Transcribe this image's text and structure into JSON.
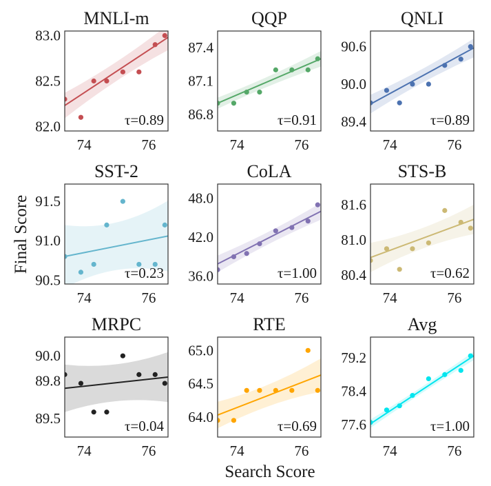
{
  "chart_data": {
    "type": "scatter",
    "xlabel": "Search Score",
    "ylabel": "Final Score",
    "xticks": [
      74,
      76
    ],
    "xlim": [
      73.4,
      76.6
    ],
    "subplots": [
      {
        "title": "MNLI-m",
        "tau": "τ=0.89",
        "color": "#c44e52",
        "ylim": [
          81.95,
          83.05
        ],
        "yticks": [
          82.0,
          82.5,
          83.0
        ],
        "ytick_labels": [
          "82.0",
          "82.5",
          "83.0"
        ],
        "points": [
          [
            73.4,
            82.3
          ],
          [
            73.9,
            82.1
          ],
          [
            74.3,
            82.5
          ],
          [
            74.7,
            82.5
          ],
          [
            75.2,
            82.6
          ],
          [
            75.7,
            82.6
          ],
          [
            76.2,
            82.9
          ],
          [
            76.5,
            83.0
          ]
        ],
        "fit": [
          [
            73.4,
            82.23
          ],
          [
            76.6,
            82.98
          ]
        ],
        "band": [
          0.14,
          0.07,
          0.14
        ]
      },
      {
        "title": "QQP",
        "tau": "τ=0.91",
        "color": "#55a868",
        "ylim": [
          86.65,
          87.55
        ],
        "yticks": [
          86.8,
          87.1,
          87.4
        ],
        "ytick_labels": [
          "86.8",
          "87.1",
          "87.4"
        ],
        "points": [
          [
            73.4,
            86.9
          ],
          [
            73.9,
            86.9
          ],
          [
            74.3,
            87.0
          ],
          [
            74.7,
            87.0
          ],
          [
            75.2,
            87.2
          ],
          [
            75.7,
            87.2
          ],
          [
            76.2,
            87.2
          ],
          [
            76.5,
            87.3
          ]
        ],
        "fit": [
          [
            73.4,
            86.9
          ],
          [
            76.6,
            87.3
          ]
        ],
        "band": [
          0.05,
          0.03,
          0.07
        ]
      },
      {
        "title": "QNLI",
        "tau": "τ=0.89",
        "color": "#4c72b0",
        "ylim": [
          89.25,
          90.85
        ],
        "yticks": [
          89.4,
          90.0,
          90.6
        ],
        "ytick_labels": [
          "89.4",
          "90.0",
          "90.6"
        ],
        "points": [
          [
            73.4,
            89.7
          ],
          [
            73.9,
            89.9
          ],
          [
            74.3,
            89.7
          ],
          [
            74.7,
            90.0
          ],
          [
            75.2,
            90.0
          ],
          [
            75.7,
            90.3
          ],
          [
            76.2,
            90.4
          ],
          [
            76.5,
            90.6
          ]
        ],
        "fit": [
          [
            73.4,
            89.68
          ],
          [
            76.6,
            90.58
          ]
        ],
        "band": [
          0.15,
          0.07,
          0.15
        ]
      },
      {
        "title": "SST-2",
        "tau": "τ=0.23",
        "color": "#64b5cd",
        "ylim": [
          90.45,
          91.72
        ],
        "yticks": [
          90.5,
          91.0,
          91.5
        ],
        "ytick_labels": [
          "90.5",
          "91.0",
          "91.5"
        ],
        "points": [
          [
            73.4,
            90.8
          ],
          [
            73.9,
            90.6
          ],
          [
            74.3,
            90.7
          ],
          [
            74.7,
            91.2
          ],
          [
            75.2,
            91.5
          ],
          [
            75.7,
            90.7
          ],
          [
            76.2,
            90.7
          ],
          [
            76.5,
            91.2
          ]
        ],
        "fit": [
          [
            73.4,
            90.8
          ],
          [
            76.6,
            91.06
          ]
        ],
        "band": [
          0.4,
          0.18,
          0.45
        ]
      },
      {
        "title": "CoLA",
        "tau": "τ=1.00",
        "color": "#8172b2",
        "ylim": [
          34.8,
          50.2
        ],
        "yticks": [
          36.0,
          42.0,
          48.0
        ],
        "ytick_labels": [
          "36.0",
          "42.0",
          "48.0"
        ],
        "points": [
          [
            73.4,
            37.0
          ],
          [
            73.9,
            39.0
          ],
          [
            74.3,
            39.5
          ],
          [
            74.7,
            41.0
          ],
          [
            75.2,
            43.0
          ],
          [
            75.7,
            43.5
          ],
          [
            76.2,
            44.5
          ],
          [
            76.5,
            47.0
          ]
        ],
        "fit": [
          [
            73.4,
            37.9
          ],
          [
            76.6,
            46.0
          ]
        ],
        "band": [
          1.3,
          0.6,
          1.3
        ]
      },
      {
        "title": "STS-B",
        "tau": "τ=0.62",
        "color": "#ccb974",
        "ylim": [
          80.25,
          81.95
        ],
        "yticks": [
          80.4,
          81.0,
          81.6
        ],
        "ytick_labels": [
          "80.4",
          "81.0",
          "81.6"
        ],
        "points": [
          [
            73.4,
            80.65
          ],
          [
            73.9,
            80.85
          ],
          [
            74.3,
            80.5
          ],
          [
            74.7,
            80.85
          ],
          [
            75.2,
            80.95
          ],
          [
            75.7,
            81.5
          ],
          [
            76.2,
            81.3
          ],
          [
            76.5,
            81.2
          ]
        ],
        "fit": [
          [
            73.4,
            80.7
          ],
          [
            76.6,
            81.35
          ]
        ],
        "band": [
          0.25,
          0.1,
          0.25
        ]
      },
      {
        "title": "MRPC",
        "tau": "τ=0.04",
        "color": "#222222",
        "ylim": [
          89.35,
          90.15
        ],
        "yticks": [
          89.5,
          89.8,
          90.0
        ],
        "ytick_labels": [
          "89.5",
          "89.8",
          "90.0"
        ],
        "points": [
          [
            73.4,
            89.85
          ],
          [
            73.9,
            89.78
          ],
          [
            74.3,
            89.55
          ],
          [
            74.7,
            89.55
          ],
          [
            75.2,
            90.0
          ],
          [
            75.7,
            89.85
          ],
          [
            76.2,
            89.85
          ],
          [
            76.5,
            89.78
          ]
        ],
        "fit": [
          [
            73.4,
            89.74
          ],
          [
            76.6,
            89.83
          ]
        ],
        "band": [
          0.19,
          0.1,
          0.2
        ]
      },
      {
        "title": "RTE",
        "tau": "τ=0.69",
        "color": "#ffa500",
        "ylim": [
          63.7,
          65.2
        ],
        "yticks": [
          64.0,
          64.5,
          65.0
        ],
        "ytick_labels": [
          "64.0",
          "64.5",
          "65.0"
        ],
        "points": [
          [
            73.4,
            63.95
          ],
          [
            73.9,
            63.95
          ],
          [
            74.3,
            64.4
          ],
          [
            74.7,
            64.4
          ],
          [
            75.2,
            64.4
          ],
          [
            75.7,
            64.4
          ],
          [
            76.2,
            65.0
          ],
          [
            76.5,
            64.4
          ]
        ],
        "fit": [
          [
            73.4,
            64.03
          ],
          [
            76.6,
            64.63
          ]
        ],
        "band": [
          0.2,
          0.1,
          0.25
        ]
      },
      {
        "title": "Avg",
        "tau": "τ=1.00",
        "color": "#00e5ee",
        "ylim": [
          77.3,
          79.7
        ],
        "yticks": [
          77.6,
          78.4,
          79.2
        ],
        "ytick_labels": [
          "77.6",
          "78.4",
          "79.2"
        ],
        "points": [
          [
            73.4,
            77.65
          ],
          [
            73.9,
            77.95
          ],
          [
            74.3,
            78.05
          ],
          [
            74.7,
            78.3
          ],
          [
            75.2,
            78.7
          ],
          [
            75.7,
            78.8
          ],
          [
            76.2,
            78.9
          ],
          [
            76.5,
            79.25
          ]
        ],
        "fit": [
          [
            73.4,
            77.62
          ],
          [
            76.6,
            79.25
          ]
        ],
        "band": [
          0.1,
          0.05,
          0.1
        ]
      }
    ]
  }
}
